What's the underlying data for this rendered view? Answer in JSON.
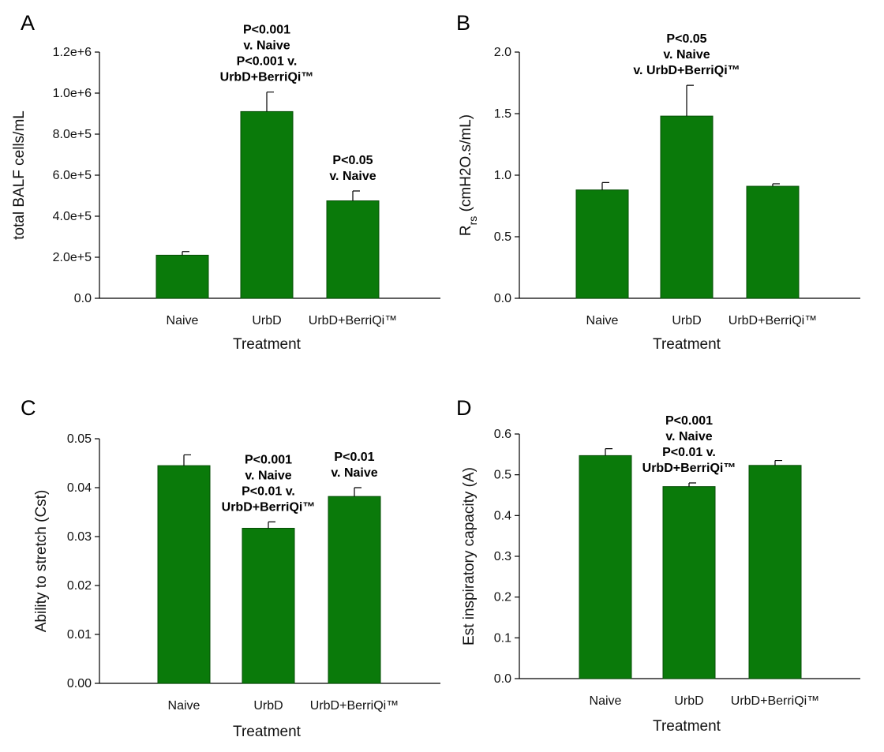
{
  "chart_data": [
    {
      "type": "bar",
      "panel": "A",
      "categories": [
        "Naive",
        "UrbD",
        "UrbD+BerriQi™"
      ],
      "values": [
        210000,
        910000,
        475000
      ],
      "errors": [
        18000,
        95000,
        48000
      ],
      "xlabel": "Treatment",
      "ylabel": "total BALF cells/mL",
      "ylim": [
        0,
        1200000
      ],
      "yticks": [
        0,
        200000,
        400000,
        600000,
        800000,
        1000000,
        1200000
      ],
      "ytick_labels": [
        "0.0",
        "2.0e+5",
        "4.0e+5",
        "6.0e+5",
        "8.0e+5",
        "1.0e+6",
        "1.2e+6"
      ],
      "annotations": [
        {
          "category": "UrbD",
          "lines": [
            "P<0.001",
            "v. Naive",
            "P<0.001 v.",
            "UrbD+BerriQi™"
          ]
        },
        {
          "category": "UrbD+BerriQi™",
          "lines": [
            "P<0.05",
            "v. Naive"
          ]
        }
      ]
    },
    {
      "type": "bar",
      "panel": "B",
      "categories": [
        "Naive",
        "UrbD",
        "UrbD+BerriQi™"
      ],
      "values": [
        0.88,
        1.48,
        0.91
      ],
      "errors": [
        0.06,
        0.25,
        0.02
      ],
      "xlabel": "Treatment",
      "ylabel": "Rrs (cmH2O.s/mL)",
      "ylabel_main": "R",
      "ylabel_sub": "rs",
      "ylabel_rest": " (cmH2O.s/mL)",
      "ylim": [
        0,
        2.0
      ],
      "yticks": [
        0,
        0.5,
        1.0,
        1.5,
        2.0
      ],
      "ytick_labels": [
        "0.0",
        "0.5",
        "1.0",
        "1.5",
        "2.0"
      ],
      "annotations": [
        {
          "category": "UrbD",
          "lines": [
            "P<0.05",
            "v. Naive",
            "v. UrbD+BerriQi™"
          ]
        }
      ]
    },
    {
      "type": "bar",
      "panel": "C",
      "categories": [
        "Naive",
        "UrbD",
        "UrbD+BerriQi™"
      ],
      "values": [
        0.0445,
        0.0317,
        0.0382
      ],
      "errors": [
        0.0022,
        0.0013,
        0.0018
      ],
      "xlabel": "Treatment",
      "ylabel": "Ability to stretch (Cst)",
      "ylim": [
        0,
        0.05
      ],
      "yticks": [
        0,
        0.01,
        0.02,
        0.03,
        0.04,
        0.05
      ],
      "ytick_labels": [
        "0.00",
        "0.01",
        "0.02",
        "0.03",
        "0.04",
        "0.05"
      ],
      "annotations": [
        {
          "category": "UrbD",
          "lines": [
            "P<0.001",
            "v. Naive",
            "P<0.01 v.",
            "UrbD+BerriQi™"
          ]
        },
        {
          "category": "UrbD+BerriQi™",
          "lines": [
            "P<0.01",
            "v. Naive"
          ]
        }
      ]
    },
    {
      "type": "bar",
      "panel": "D",
      "categories": [
        "Naive",
        "UrbD",
        "UrbD+BerriQi™"
      ],
      "values": [
        0.547,
        0.471,
        0.523
      ],
      "errors": [
        0.017,
        0.009,
        0.012
      ],
      "xlabel": "Treatment",
      "ylabel": "Est inspiratory capacity (A)",
      "ylim": [
        0,
        0.6
      ],
      "yticks": [
        0,
        0.1,
        0.2,
        0.3,
        0.4,
        0.5,
        0.6
      ],
      "ytick_labels": [
        "0.0",
        "0.1",
        "0.2",
        "0.3",
        "0.4",
        "0.5",
        "0.6"
      ],
      "annotations": [
        {
          "category": "UrbD",
          "lines": [
            "P<0.001",
            "v. Naive",
            "P<0.01 v.",
            "UrbD+BerriQi™"
          ]
        }
      ]
    }
  ],
  "colors": {
    "bar_fill": "#0a7a0a",
    "bar_edge": "#064f06",
    "axis": "#000000"
  }
}
